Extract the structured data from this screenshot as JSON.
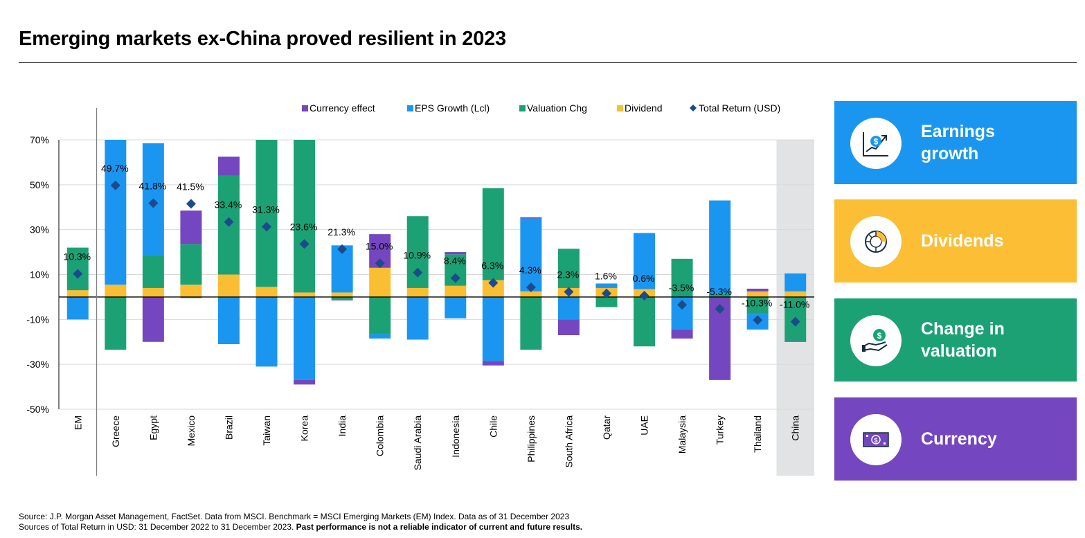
{
  "title": "Emerging markets ex-China proved resilient in 2023",
  "chart_data": {
    "type": "bar",
    "stacked": true,
    "categories": [
      "EM",
      "Greece",
      "Egypt",
      "Mexico",
      "Brazil",
      "Taiwan",
      "Korea",
      "India",
      "Colombia",
      "Saudi Arabia",
      "Indonesia",
      "Chile",
      "Philippines",
      "South Africa",
      "Qatar",
      "UAE",
      "Malaysia",
      "Turkey",
      "Thailand",
      "China"
    ],
    "series": [
      {
        "name": "Currency effect",
        "color": "#7446BF",
        "values": [
          0,
          0,
          -20,
          15,
          8.5,
          0,
          -2,
          -0.5,
          15,
          0,
          1,
          -2,
          0.5,
          -7,
          0,
          0,
          -4,
          -37,
          1.2,
          -0.5
        ]
      },
      {
        "name": "EPS Growth (Lcl)",
        "color": "#1B96F0",
        "values": [
          -10,
          65,
          50,
          -0.5,
          -21,
          -31,
          -37,
          21,
          -2,
          -19,
          -9.5,
          -28.5,
          32.5,
          -10,
          2,
          25,
          -14.5,
          41.5,
          -7,
          8
        ]
      },
      {
        "name": "Valuation Chg",
        "color": "#1CA174",
        "values": [
          19,
          -23.5,
          14.5,
          18,
          44,
          66,
          69,
          -1,
          -16.5,
          32,
          14,
          41,
          -23.5,
          17.5,
          -4.5,
          -22,
          17,
          1.5,
          -7.5,
          -19.5
        ]
      },
      {
        "name": "Dividend",
        "color": "#FABE32",
        "values": [
          3,
          5.5,
          4,
          5.5,
          10,
          4.5,
          2,
          2,
          13,
          4,
          5,
          7.5,
          2.5,
          4,
          4,
          3.5,
          0,
          0,
          2.5,
          2.5
        ]
      }
    ],
    "total_return": {
      "name": "Total Return (USD)",
      "color": "#1C4B8C",
      "values": [
        10.3,
        49.7,
        41.8,
        41.5,
        33.4,
        31.3,
        23.6,
        21.3,
        15.0,
        10.9,
        8.4,
        6.3,
        4.3,
        2.3,
        1.6,
        0.6,
        -3.5,
        -5.3,
        -10.3,
        -11.0
      ],
      "labels": [
        "10.3%",
        "49.7%",
        "41.8%",
        "41.5%",
        "33.4%",
        "31.3%",
        "23.6%",
        "21.3%",
        "15.0%",
        "10.9%",
        "8.4%",
        "6.3%",
        "4.3%",
        "2.3%",
        "1.6%",
        "0.6%",
        "-3.5%",
        "-5.3%",
        "-10.3%",
        "-11.0%"
      ]
    },
    "ylim": [
      -50,
      70
    ],
    "yticks": [
      70,
      50,
      30,
      10,
      -10,
      -30,
      -50
    ],
    "ytick_labels": [
      "70%",
      "50%",
      "30%",
      "10%",
      "-10%",
      "-30%",
      "-50%"
    ],
    "grid": true,
    "legend_position": "top",
    "highlighted_category": "China",
    "highlight_color": "#E2E3E4"
  },
  "panels": [
    {
      "label": "Earnings\ngrowth",
      "color": "#1A96F0",
      "icon": "earnings-growth-icon"
    },
    {
      "label": "Dividends",
      "color": "#FBBE35",
      "icon": "dividends-pie-icon"
    },
    {
      "label": "Change in\nvaluation",
      "color": "#1BA173",
      "icon": "valuation-hand-coin-icon"
    },
    {
      "label": "Currency",
      "color": "#7446BF",
      "icon": "currency-banknote-icon"
    }
  ],
  "footer": {
    "line1": "Source: J.P. Morgan Asset Management, FactSet. Data from MSCI. Benchmark = MSCI Emerging Markets (EM) Index. Data as of 31 December 2023",
    "line2": "Sources of Total Return in USD: 31 December 2022 to 31 December 2023. ",
    "line2_bold": "Past performance is not a reliable indicator of current and future results."
  }
}
